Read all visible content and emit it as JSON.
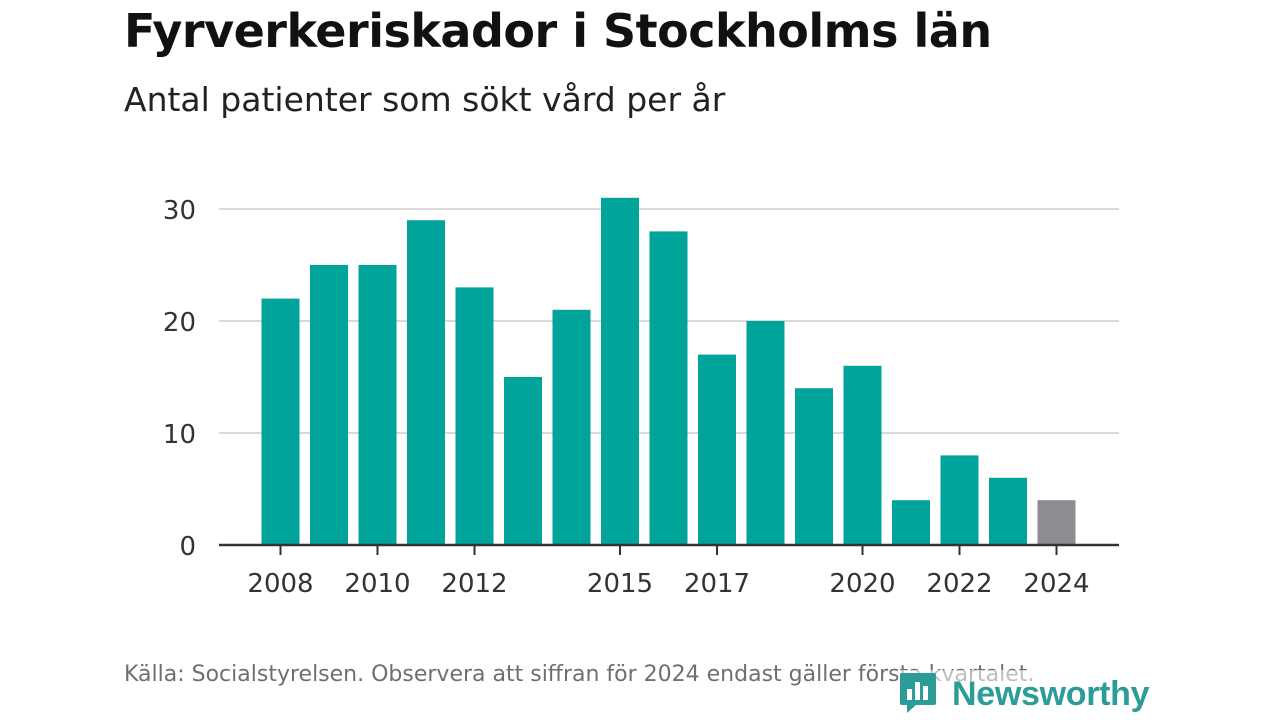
{
  "title": "Fyrverkeriskador i Stockholms län",
  "subtitle": "Antal patienter som sökt vård per år",
  "footer": "Källa: Socialstyrelsen. Observera att siffran för 2024 endast gäller första kvartalet.",
  "brand": {
    "name": "Newsworthy",
    "icon": "newsworthy-logo-icon",
    "color": "#2c9c98"
  },
  "colors": {
    "bar": "#00a49a",
    "highlight": "#8c8c91",
    "grid": "#d9d9d9",
    "axis": "#333333",
    "text": "#333333"
  },
  "chart_data": {
    "type": "bar",
    "title": "Fyrverkeriskador i Stockholms län",
    "subtitle": "Antal patienter som sökt vård per år",
    "xlabel": "",
    "ylabel": "",
    "categories": [
      "2008",
      "2009",
      "2010",
      "2011",
      "2012",
      "2013",
      "2014",
      "2015",
      "2016",
      "2017",
      "2018",
      "2019",
      "2020",
      "2021",
      "2022",
      "2023",
      "2024"
    ],
    "values": [
      22,
      25,
      25,
      29,
      23,
      15,
      21,
      31,
      28,
      17,
      20,
      14,
      16,
      4,
      8,
      6,
      4
    ],
    "highlighted_category": "2024",
    "x_tick_labels": [
      "2008",
      "2010",
      "2012",
      "2015",
      "2017",
      "2020",
      "2022",
      "2024"
    ],
    "y_ticks": [
      0,
      10,
      20,
      30
    ],
    "ylim": [
      0,
      32
    ],
    "grid": true,
    "legend": "none"
  }
}
